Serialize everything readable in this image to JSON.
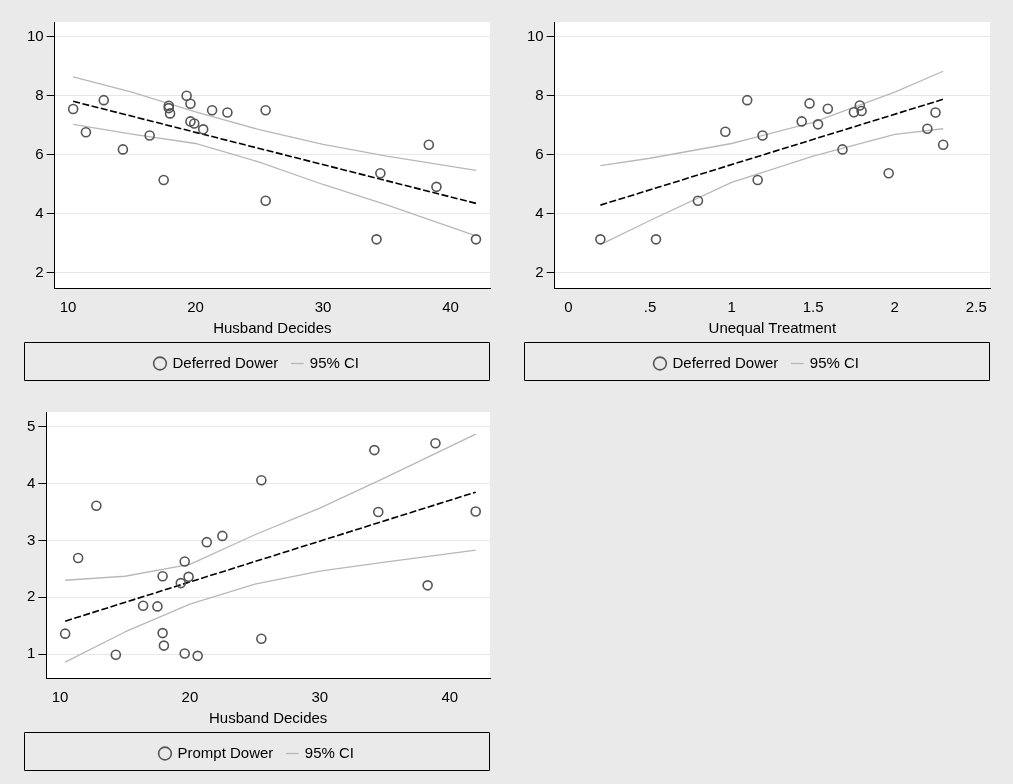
{
  "chart_data": [
    {
      "type": "scatter",
      "xlabel": "Husband Decides",
      "xlim": [
        8.95,
        43.1
      ],
      "xticks": [
        10,
        20,
        30,
        40
      ],
      "ylim": [
        1.48,
        10.5
      ],
      "yticks": [
        2,
        4,
        6,
        8,
        10
      ],
      "grid": "y",
      "legend": "bottom",
      "series": [
        {
          "name": "Deferred Dower",
          "color": "#555555",
          "marker": "circle",
          "x": [
            10.4,
            11.4,
            12.8,
            14.3,
            16.4,
            17.5,
            17.9,
            17.9,
            18.0,
            19.3,
            19.6,
            19.6,
            19.9,
            20.6,
            21.3,
            22.5,
            25.5,
            25.5,
            34.2,
            34.5,
            38.3,
            38.9,
            42.0
          ],
          "values": [
            7.55,
            6.76,
            7.85,
            6.18,
            6.65,
            5.14,
            7.66,
            7.58,
            7.4,
            8.0,
            7.73,
            7.13,
            7.06,
            6.86,
            7.51,
            7.43,
            7.51,
            4.44,
            3.13,
            5.37,
            6.34,
            4.91,
            3.13
          ]
        },
        {
          "type": "line",
          "color": "#000000",
          "line_style": "dashed",
          "marker": "none",
          "x": [
            10.4,
            42.0
          ],
          "values": [
            7.81,
            4.35
          ]
        },
        {
          "type": "line",
          "name": "95% CI",
          "color": "#b8b8b8",
          "line_style": "solid",
          "marker": "none",
          "x": [
            10.4,
            15,
            20,
            25,
            30,
            35,
            42
          ],
          "values": [
            8.64,
            8.12,
            7.45,
            6.85,
            6.35,
            5.95,
            5.47
          ]
        },
        {
          "type": "line",
          "color": "#b8b8b8",
          "line_style": "solid",
          "marker": "none",
          "x": [
            10.4,
            15,
            20,
            25,
            30,
            35,
            42
          ],
          "values": [
            7.03,
            6.7,
            6.38,
            5.75,
            4.99,
            4.3,
            3.25
          ]
        }
      ]
    },
    {
      "type": "scatter",
      "xlabel": "Unequal Treatment",
      "xlim": [
        -0.084,
        2.584
      ],
      "xticks": [
        0,
        {
          "value": 0.5,
          "label": ".5"
        },
        1,
        1.5,
        2,
        2.5
      ],
      "ylim": [
        1.48,
        10.5
      ],
      "yticks": [
        2,
        4,
        6,
        8,
        10
      ],
      "grid": "y",
      "legend": "bottom",
      "series": [
        {
          "name": "Deferred Dower",
          "color": "#555555",
          "marker": "circle",
          "x": [
            0.196,
            0.537,
            0.794,
            0.962,
            1.096,
            1.16,
            1.19,
            1.43,
            1.478,
            1.53,
            1.59,
            1.68,
            1.75,
            1.786,
            1.797,
            1.963,
            2.2,
            2.25,
            2.297
          ],
          "values": [
            3.13,
            3.13,
            4.44,
            6.78,
            7.85,
            5.14,
            6.65,
            7.13,
            7.74,
            7.03,
            7.56,
            6.18,
            7.44,
            7.67,
            7.48,
            5.37,
            6.88,
            7.43,
            6.34
          ]
        },
        {
          "type": "line",
          "color": "#000000",
          "line_style": "dashed",
          "marker": "none",
          "x": [
            0.196,
            2.297
          ],
          "values": [
            4.29,
            7.88
          ]
        },
        {
          "type": "line",
          "name": "95% CI",
          "color": "#b8b8b8",
          "line_style": "solid",
          "marker": "none",
          "x": [
            0.196,
            0.5,
            1,
            1.5,
            2,
            2.297
          ],
          "values": [
            5.63,
            5.88,
            6.38,
            7.1,
            8.12,
            8.83
          ]
        },
        {
          "type": "line",
          "color": "#b8b8b8",
          "line_style": "solid",
          "marker": "none",
          "x": [
            0.196,
            0.5,
            1,
            1.5,
            2,
            2.297
          ],
          "values": [
            2.95,
            3.77,
            5.06,
            5.95,
            6.69,
            6.88
          ]
        }
      ]
    },
    {
      "type": "scatter",
      "xlabel": "Husband Decides",
      "xlim": [
        8.95,
        43.1
      ],
      "xticks": [
        10,
        20,
        30,
        40
      ],
      "ylim": [
        0.58,
        5.26
      ],
      "yticks": [
        1,
        2,
        3,
        4,
        5
      ],
      "grid": "y",
      "legend": "bottom",
      "series": [
        {
          "name": "Prompt Dower",
          "color": "#555555",
          "marker": "circle",
          "x": [
            10.4,
            11.4,
            12.8,
            14.3,
            16.4,
            17.5,
            17.9,
            17.9,
            18.0,
            19.3,
            19.6,
            19.6,
            19.9,
            20.6,
            21.3,
            22.5,
            25.5,
            25.5,
            34.2,
            34.5,
            38.3,
            38.9,
            42.0
          ],
          "values": [
            1.36,
            2.69,
            3.61,
            0.99,
            1.85,
            1.84,
            2.37,
            1.37,
            1.15,
            2.25,
            1.01,
            2.63,
            2.36,
            0.97,
            2.97,
            3.08,
            4.06,
            1.27,
            4.59,
            3.5,
            2.21,
            4.71,
            3.51
          ]
        },
        {
          "type": "line",
          "color": "#000000",
          "line_style": "dashed",
          "marker": "none",
          "x": [
            10.4,
            42.0
          ],
          "values": [
            1.58,
            3.85
          ]
        },
        {
          "type": "line",
          "name": "95% CI",
          "color": "#b8b8b8",
          "line_style": "solid",
          "marker": "none",
          "x": [
            10.4,
            15,
            20,
            25,
            30,
            35,
            42
          ],
          "values": [
            2.3,
            2.37,
            2.58,
            3.1,
            3.57,
            4.1,
            4.87
          ]
        },
        {
          "type": "line",
          "color": "#b8b8b8",
          "line_style": "solid",
          "marker": "none",
          "x": [
            10.4,
            15,
            20,
            25,
            30,
            35,
            42
          ],
          "values": [
            0.86,
            1.39,
            1.88,
            2.23,
            2.46,
            2.62,
            2.83
          ]
        }
      ]
    }
  ]
}
